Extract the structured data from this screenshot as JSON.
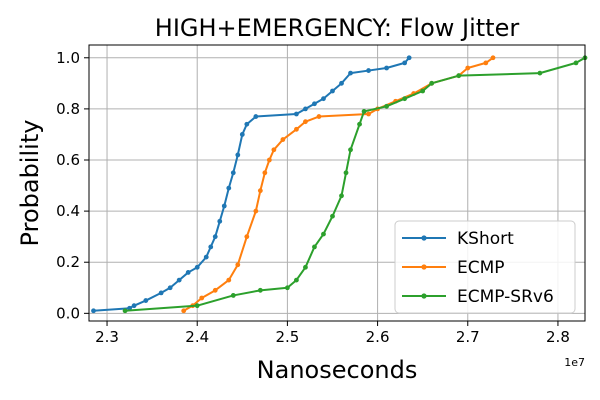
{
  "chart_data": {
    "type": "line",
    "title": "HIGH+EMERGENCY: Flow Jitter",
    "xlabel": "Nanoseconds",
    "ylabel": "Probability",
    "x_offset_label": "1e7",
    "xlim": [
      22800000,
      28300000
    ],
    "ylim": [
      -0.03,
      1.05
    ],
    "xticks": [
      23000000,
      24000000,
      25000000,
      26000000,
      27000000,
      28000000
    ],
    "xtick_labels": [
      "2.3",
      "2.4",
      "2.5",
      "2.6",
      "2.7",
      "2.8"
    ],
    "yticks": [
      0.0,
      0.2,
      0.4,
      0.6,
      0.8,
      1.0
    ],
    "ytick_labels": [
      "0.0",
      "0.2",
      "0.4",
      "0.6",
      "0.8",
      "1.0"
    ],
    "grid": true,
    "legend_position": "lower-right",
    "series": [
      {
        "name": "KShort",
        "color": "#1f77b4",
        "points": [
          [
            22850000,
            0.01
          ],
          [
            23250000,
            0.02
          ],
          [
            23300000,
            0.03
          ],
          [
            23430000,
            0.05
          ],
          [
            23600000,
            0.08
          ],
          [
            23700000,
            0.1
          ],
          [
            23800000,
            0.13
          ],
          [
            23900000,
            0.16
          ],
          [
            24000000,
            0.18
          ],
          [
            24100000,
            0.22
          ],
          [
            24150000,
            0.26
          ],
          [
            24200000,
            0.3
          ],
          [
            24250000,
            0.36
          ],
          [
            24300000,
            0.42
          ],
          [
            24350000,
            0.49
          ],
          [
            24400000,
            0.55
          ],
          [
            24450000,
            0.62
          ],
          [
            24500000,
            0.7
          ],
          [
            24550000,
            0.74
          ],
          [
            24650000,
            0.77
          ],
          [
            25100000,
            0.78
          ],
          [
            25200000,
            0.8
          ],
          [
            25300000,
            0.82
          ],
          [
            25400000,
            0.84
          ],
          [
            25500000,
            0.87
          ],
          [
            25600000,
            0.9
          ],
          [
            25700000,
            0.94
          ],
          [
            25900000,
            0.95
          ],
          [
            26100000,
            0.96
          ],
          [
            26300000,
            0.98
          ],
          [
            26350000,
            1.0
          ]
        ]
      },
      {
        "name": "ECMP",
        "color": "#ff7f0e",
        "points": [
          [
            23850000,
            0.01
          ],
          [
            23950000,
            0.03
          ],
          [
            24050000,
            0.06
          ],
          [
            24200000,
            0.09
          ],
          [
            24350000,
            0.13
          ],
          [
            24450000,
            0.19
          ],
          [
            24550000,
            0.3
          ],
          [
            24650000,
            0.4
          ],
          [
            24700000,
            0.48
          ],
          [
            24750000,
            0.55
          ],
          [
            24800000,
            0.6
          ],
          [
            24850000,
            0.64
          ],
          [
            24950000,
            0.68
          ],
          [
            25100000,
            0.72
          ],
          [
            25200000,
            0.75
          ],
          [
            25350000,
            0.77
          ],
          [
            25900000,
            0.78
          ],
          [
            26000000,
            0.8
          ],
          [
            26200000,
            0.83
          ],
          [
            26400000,
            0.86
          ],
          [
            26600000,
            0.9
          ],
          [
            26900000,
            0.93
          ],
          [
            27000000,
            0.96
          ],
          [
            27200000,
            0.98
          ],
          [
            27280000,
            1.0
          ]
        ]
      },
      {
        "name": "ECMP-SRv6",
        "color": "#2ca02c",
        "points": [
          [
            23200000,
            0.01
          ],
          [
            24000000,
            0.03
          ],
          [
            24400000,
            0.07
          ],
          [
            24700000,
            0.09
          ],
          [
            25000000,
            0.1
          ],
          [
            25100000,
            0.13
          ],
          [
            25200000,
            0.18
          ],
          [
            25300000,
            0.26
          ],
          [
            25400000,
            0.31
          ],
          [
            25500000,
            0.38
          ],
          [
            25600000,
            0.46
          ],
          [
            25650000,
            0.55
          ],
          [
            25700000,
            0.64
          ],
          [
            25800000,
            0.74
          ],
          [
            25850000,
            0.79
          ],
          [
            26100000,
            0.81
          ],
          [
            26300000,
            0.84
          ],
          [
            26500000,
            0.87
          ],
          [
            26600000,
            0.9
          ],
          [
            26900000,
            0.93
          ],
          [
            27800000,
            0.94
          ],
          [
            28200000,
            0.98
          ],
          [
            28300000,
            1.0
          ]
        ]
      }
    ]
  }
}
